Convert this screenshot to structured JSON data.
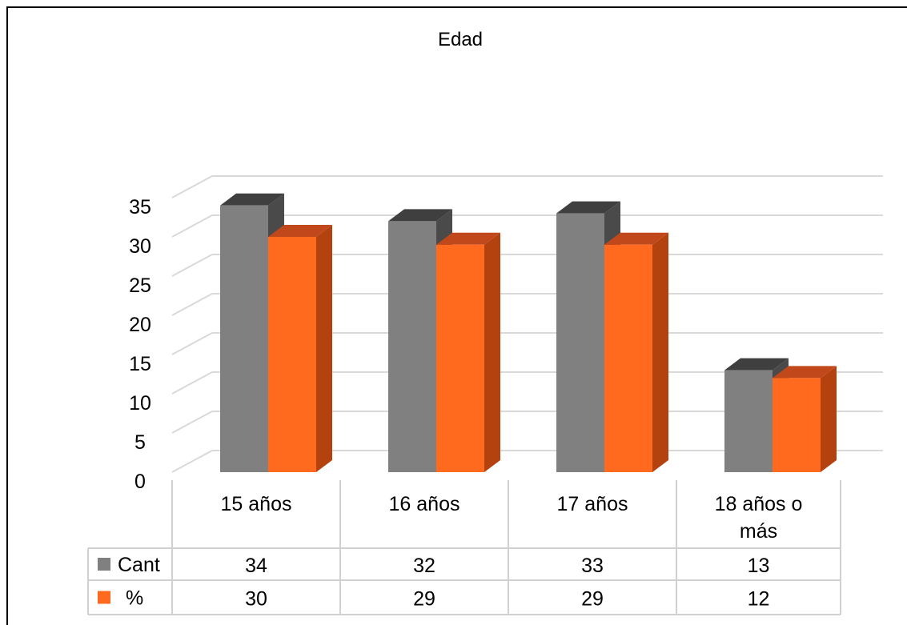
{
  "chart_data": {
    "type": "bar",
    "title": "Edad",
    "categories": [
      "15 años",
      "16 años",
      "17 años",
      "18 años o más"
    ],
    "series": [
      {
        "name": "Cant",
        "values": [
          34,
          32,
          33,
          13
        ],
        "color": "#808080",
        "side_color": "#4a4a4a",
        "top_color": "#3f3f3f"
      },
      {
        "name": "%",
        "values": [
          30,
          29,
          29,
          12
        ],
        "color": "#ff6a1f",
        "side_color": "#b3420f",
        "top_color": "#c1481a"
      }
    ],
    "ylim": [
      0,
      35
    ],
    "yticks": [
      0,
      5,
      10,
      15,
      20,
      25,
      30,
      35
    ],
    "grid": true,
    "legend": "data-table",
    "three_d": true
  }
}
